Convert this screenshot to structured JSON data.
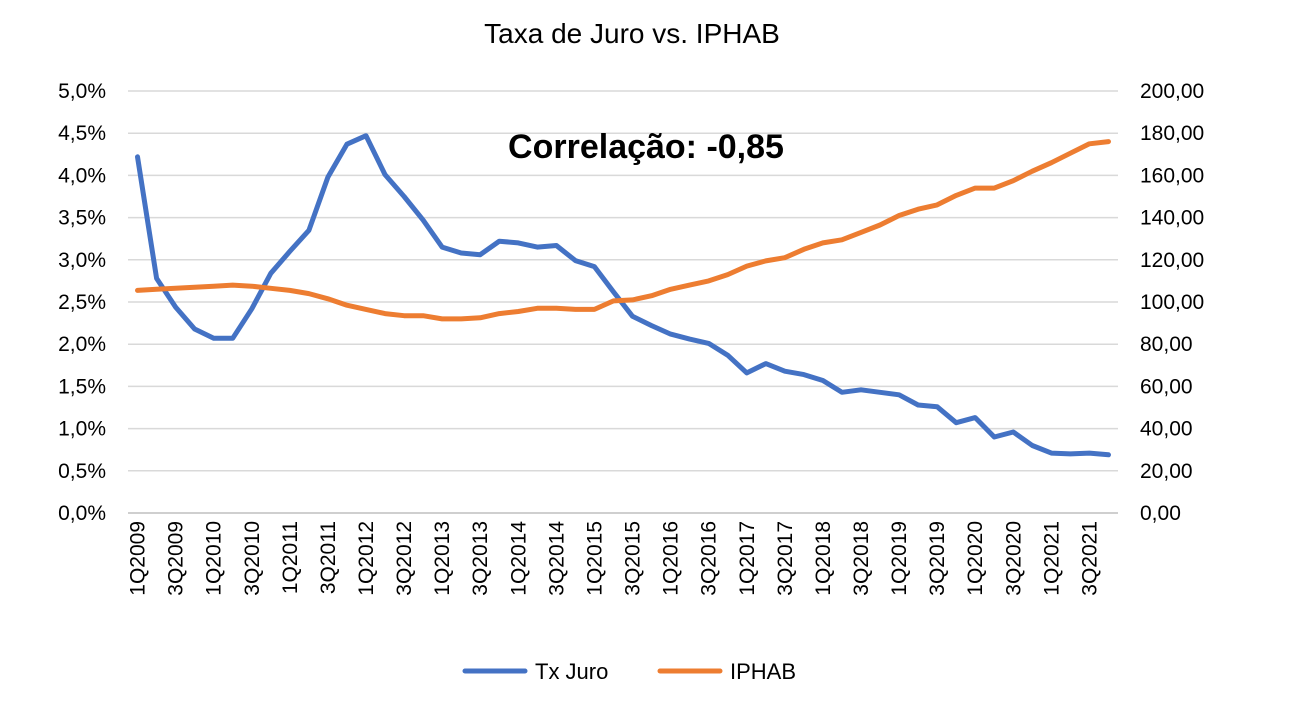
{
  "chart_data": {
    "type": "line",
    "title": "Taxa de Juro vs. IPHAB",
    "annotation": "Correlação: -0,85",
    "grid": true,
    "legend_position": "bottom",
    "x": [
      "1Q2009",
      "2Q2009",
      "3Q2009",
      "4Q2009",
      "1Q2010",
      "2Q2010",
      "3Q2010",
      "4Q2010",
      "1Q2011",
      "2Q2011",
      "3Q2011",
      "4Q2011",
      "1Q2012",
      "2Q2012",
      "3Q2012",
      "4Q2012",
      "1Q2013",
      "2Q2013",
      "3Q2013",
      "4Q2013",
      "1Q2014",
      "2Q2014",
      "3Q2014",
      "4Q2014",
      "1Q2015",
      "2Q2015",
      "3Q2015",
      "4Q2015",
      "1Q2016",
      "2Q2016",
      "3Q2016",
      "4Q2016",
      "1Q2017",
      "2Q2017",
      "3Q2017",
      "4Q2017",
      "1Q2018",
      "2Q2018",
      "3Q2018",
      "4Q2018",
      "1Q2019",
      "2Q2019",
      "3Q2019",
      "4Q2019",
      "1Q2020",
      "2Q2020",
      "3Q2020",
      "4Q2020",
      "1Q2021",
      "2Q2021",
      "3Q2021",
      "4Q2021"
    ],
    "x_tick_labels": [
      "1Q2009",
      "3Q2009",
      "1Q2010",
      "3Q2010",
      "1Q2011",
      "3Q2011",
      "1Q2012",
      "3Q2012",
      "1Q2013",
      "3Q2013",
      "1Q2014",
      "3Q2014",
      "1Q2015",
      "3Q2015",
      "1Q2016",
      "3Q2016",
      "1Q2017",
      "3Q2017",
      "1Q2018",
      "3Q2018",
      "1Q2019",
      "3Q2019",
      "1Q2020",
      "3Q2020",
      "1Q2021",
      "3Q2021"
    ],
    "y_left": {
      "range": [
        0,
        5
      ],
      "ticks": [
        "0,0%",
        "0,5%",
        "1,0%",
        "1,5%",
        "2,0%",
        "2,5%",
        "3,0%",
        "3,5%",
        "4,0%",
        "4,5%",
        "5,0%"
      ]
    },
    "y_right": {
      "range": [
        0,
        200
      ],
      "ticks": [
        "0,00",
        "20,00",
        "40,00",
        "60,00",
        "80,00",
        "100,00",
        "120,00",
        "140,00",
        "160,00",
        "180,00",
        "200,00"
      ]
    },
    "series": [
      {
        "name": "Tx Juro",
        "axis": "left",
        "color": "#4472C4",
        "values": [
          4.22,
          2.78,
          2.44,
          2.18,
          2.07,
          2.07,
          2.42,
          2.84,
          3.1,
          3.35,
          3.98,
          4.37,
          4.47,
          4.01,
          3.75,
          3.47,
          3.15,
          3.08,
          3.06,
          3.22,
          3.2,
          3.15,
          3.17,
          2.99,
          2.92,
          2.62,
          2.33,
          2.22,
          2.12,
          2.06,
          2.01,
          1.87,
          1.66,
          1.77,
          1.68,
          1.64,
          1.57,
          1.43,
          1.46,
          1.43,
          1.4,
          1.28,
          1.26,
          1.07,
          1.13,
          0.9,
          0.96,
          0.8,
          0.71,
          0.7,
          0.71,
          0.69
        ]
      },
      {
        "name": "IPHAB",
        "axis": "right",
        "color": "#ED7D31",
        "values": [
          105.5,
          106.0,
          106.5,
          107.0,
          107.5,
          108.0,
          107.5,
          106.5,
          105.5,
          104.0,
          101.5,
          98.5,
          96.5,
          94.5,
          93.5,
          93.5,
          92.0,
          92.0,
          92.5,
          94.5,
          95.5,
          97.0,
          97.0,
          96.5,
          96.5,
          100.5,
          101.0,
          103.0,
          106.0,
          108.0,
          110.0,
          113.0,
          117.0,
          119.5,
          121.0,
          125.0,
          128.0,
          129.5,
          133.0,
          136.5,
          141.0,
          144.0,
          146.0,
          150.5,
          154.0,
          154.0,
          157.5,
          162.0,
          166.0,
          170.5,
          175.0,
          176.0
        ]
      }
    ]
  }
}
